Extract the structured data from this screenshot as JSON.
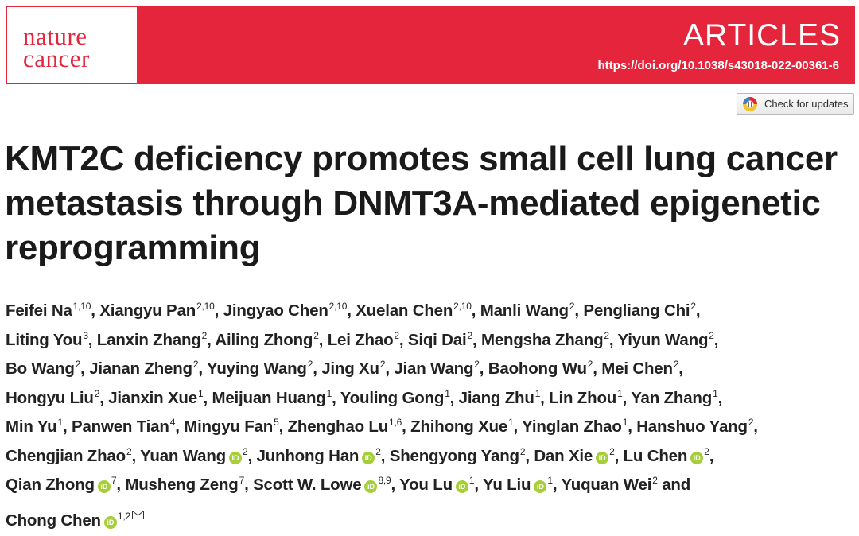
{
  "journal": {
    "logo_line1": "nature",
    "logo_line2": "cancer"
  },
  "banner": {
    "section": "ARTICLES",
    "doi": "https://doi.org/10.1038/s43018-022-00361-6",
    "color": "#e4253c"
  },
  "updates_button": {
    "label": "Check for updates",
    "icon": "check-for-updates-icon"
  },
  "title": "KMT2C deficiency promotes small cell lung cancer metastasis through DNMT3A-mediated epigenetic reprogramming",
  "orcid_icon": "iD",
  "authors": [
    {
      "name": "Feifei Na",
      "aff": "1,10",
      "orcid": false
    },
    {
      "name": "Xiangyu Pan",
      "aff": "2,10",
      "orcid": false
    },
    {
      "name": "Jingyao Chen",
      "aff": "2,10",
      "orcid": false
    },
    {
      "name": "Xuelan Chen",
      "aff": "2,10",
      "orcid": false
    },
    {
      "name": "Manli Wang",
      "aff": "2",
      "orcid": false
    },
    {
      "name": "Pengliang Chi",
      "aff": "2",
      "orcid": false
    },
    {
      "name": "Liting You",
      "aff": "3",
      "orcid": false
    },
    {
      "name": "Lanxin Zhang",
      "aff": "2",
      "orcid": false
    },
    {
      "name": "Ailing Zhong",
      "aff": "2",
      "orcid": false
    },
    {
      "name": "Lei Zhao",
      "aff": "2",
      "orcid": false
    },
    {
      "name": "Siqi Dai",
      "aff": "2",
      "orcid": false
    },
    {
      "name": "Mengsha Zhang",
      "aff": "2",
      "orcid": false
    },
    {
      "name": "Yiyun Wang",
      "aff": "2",
      "orcid": false
    },
    {
      "name": "Bo Wang",
      "aff": "2",
      "orcid": false
    },
    {
      "name": "Jianan Zheng",
      "aff": "2",
      "orcid": false
    },
    {
      "name": "Yuying Wang",
      "aff": "2",
      "orcid": false
    },
    {
      "name": "Jing Xu",
      "aff": "2",
      "orcid": false
    },
    {
      "name": "Jian Wang",
      "aff": "2",
      "orcid": false
    },
    {
      "name": "Baohong Wu",
      "aff": "2",
      "orcid": false
    },
    {
      "name": "Mei Chen",
      "aff": "2",
      "orcid": false
    },
    {
      "name": "Hongyu Liu",
      "aff": "2",
      "orcid": false
    },
    {
      "name": "Jianxin Xue",
      "aff": "1",
      "orcid": false
    },
    {
      "name": "Meijuan Huang",
      "aff": "1",
      "orcid": false
    },
    {
      "name": "Youling Gong",
      "aff": "1",
      "orcid": false
    },
    {
      "name": "Jiang Zhu",
      "aff": "1",
      "orcid": false
    },
    {
      "name": "Lin Zhou",
      "aff": "1",
      "orcid": false
    },
    {
      "name": "Yan Zhang",
      "aff": "1",
      "orcid": false
    },
    {
      "name": "Min Yu",
      "aff": "1",
      "orcid": false
    },
    {
      "name": "Panwen Tian",
      "aff": "4",
      "orcid": false
    },
    {
      "name": "Mingyu Fan",
      "aff": "5",
      "orcid": false
    },
    {
      "name": "Zhenghao Lu",
      "aff": "1,6",
      "orcid": false
    },
    {
      "name": "Zhihong Xue",
      "aff": "1",
      "orcid": false
    },
    {
      "name": "Yinglan Zhao",
      "aff": "1",
      "orcid": false
    },
    {
      "name": "Hanshuo Yang",
      "aff": "2",
      "orcid": false
    },
    {
      "name": "Chengjian Zhao",
      "aff": "2",
      "orcid": false
    },
    {
      "name": "Yuan Wang",
      "aff": "2",
      "orcid": true
    },
    {
      "name": "Junhong Han",
      "aff": "2",
      "orcid": true
    },
    {
      "name": "Shengyong Yang",
      "aff": "2",
      "orcid": false
    },
    {
      "name": "Dan Xie",
      "aff": "2",
      "orcid": true
    },
    {
      "name": "Lu Chen",
      "aff": "2",
      "orcid": true
    },
    {
      "name": "Qian Zhong",
      "aff": "7",
      "orcid": true
    },
    {
      "name": "Musheng Zeng",
      "aff": "7",
      "orcid": false
    },
    {
      "name": "Scott W. Lowe",
      "aff": "8,9",
      "orcid": true
    },
    {
      "name": "You Lu",
      "aff": "1",
      "orcid": true
    },
    {
      "name": "Yu Liu",
      "aff": "1",
      "orcid": true
    },
    {
      "name": "Yuquan Wei",
      "aff": "2",
      "orcid": false
    },
    {
      "name": "Chong Chen",
      "aff": "1,2",
      "orcid": true,
      "corresponding": true
    }
  ],
  "separator": ", ",
  "last_separator": " and ",
  "linebreak_before": [
    6,
    13,
    20,
    27,
    34,
    40,
    46
  ]
}
